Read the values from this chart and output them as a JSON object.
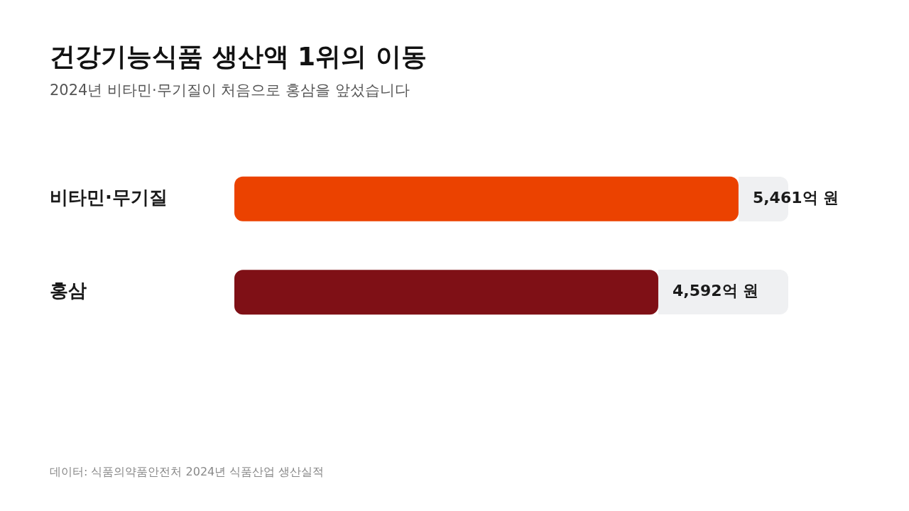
{
  "chart_data": {
    "type": "bar",
    "orientation": "horizontal",
    "title": "건강기능식품 생산액 1위의 이동",
    "subtitle": "2024년 비타민·무기질이 처음으로 홍삼을 앞섰습니다",
    "categories": [
      "비타민·무기질",
      "홍삼"
    ],
    "values": [
      5461,
      4592
    ],
    "colors": [
      "#eb4200",
      "#7f1016"
    ],
    "value_labels": [
      "5,461억 원",
      "4,592억 원"
    ],
    "xlim": [
      0,
      6000
    ],
    "tick_labels": "y",
    "grid": false,
    "legend": false,
    "annotations": [
      "데이터: 식품의약품안전처 2024년 식품산업 생산실적"
    ]
  }
}
